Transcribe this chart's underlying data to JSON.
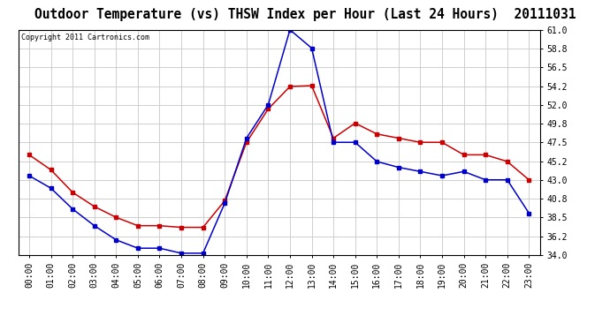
{
  "title": "Outdoor Temperature (vs) THSW Index per Hour (Last 24 Hours)  20111031",
  "copyright": "Copyright 2011 Cartronics.com",
  "hours": [
    0,
    1,
    2,
    3,
    4,
    5,
    6,
    7,
    8,
    9,
    10,
    11,
    12,
    13,
    14,
    15,
    16,
    17,
    18,
    19,
    20,
    21,
    22,
    23
  ],
  "hour_labels": [
    "00:00",
    "01:00",
    "02:00",
    "03:00",
    "04:00",
    "05:00",
    "06:00",
    "07:00",
    "08:00",
    "09:00",
    "10:00",
    "11:00",
    "12:00",
    "13:00",
    "14:00",
    "15:00",
    "16:00",
    "17:00",
    "18:00",
    "19:00",
    "20:00",
    "21:00",
    "22:00",
    "23:00"
  ],
  "temp_red": [
    46.0,
    44.2,
    41.5,
    39.8,
    38.5,
    37.5,
    37.5,
    37.3,
    37.3,
    40.5,
    47.5,
    51.5,
    54.2,
    54.3,
    48.0,
    49.8,
    48.5,
    48.0,
    47.5,
    47.5,
    46.0,
    46.0,
    45.2,
    43.0
  ],
  "thsw_blue": [
    43.5,
    42.0,
    39.5,
    37.5,
    35.8,
    34.8,
    34.8,
    34.2,
    34.2,
    40.2,
    48.0,
    52.0,
    61.0,
    58.8,
    47.5,
    47.5,
    45.2,
    44.5,
    44.0,
    43.5,
    44.0,
    43.0,
    43.0,
    39.0
  ],
  "ylim_min": 34.0,
  "ylim_max": 61.0,
  "yticks": [
    34.0,
    36.2,
    38.5,
    40.8,
    43.0,
    45.2,
    47.5,
    49.8,
    52.0,
    54.2,
    56.5,
    58.8,
    61.0
  ],
  "fig_bg": "#ffffff",
  "plot_bg": "#ffffff",
  "grid_color": "#c8c8c8",
  "red_color": "#cc0000",
  "blue_color": "#0000cc",
  "title_fontsize": 10.5,
  "copyright_fontsize": 6.0,
  "tick_fontsize": 7.0,
  "marker": "s",
  "markersize": 3.0,
  "linewidth": 1.1
}
